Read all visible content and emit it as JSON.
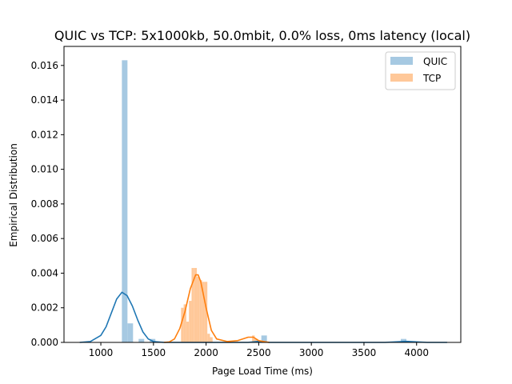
{
  "chart_data": {
    "type": "bar",
    "title": "QUIC vs TCP: 5x1000kb, 50.0mbit, 0.0% loss, 0ms latency (local)",
    "xlabel": "Page Load Time (ms)",
    "ylabel": "Empirical Distribution",
    "xlim": [
      650,
      4420
    ],
    "ylim": [
      0,
      0.0171
    ],
    "x_ticks": [
      1000,
      1500,
      2000,
      2500,
      3000,
      3500,
      4000
    ],
    "x_tick_labels": [
      "1000",
      "1500",
      "2000",
      "2500",
      "3000",
      "3500",
      "4000"
    ],
    "y_ticks": [
      0,
      0.002,
      0.004,
      0.006,
      0.008,
      0.01,
      0.012,
      0.014,
      0.016
    ],
    "y_tick_labels": [
      "0.000",
      "0.002",
      "0.004",
      "0.006",
      "0.008",
      "0.010",
      "0.012",
      "0.014",
      "0.016"
    ],
    "legend_position": "top-right",
    "grid": false,
    "series": [
      {
        "name": "QUIC",
        "kind": "histogram+kde",
        "bar_color": "#a6c9e2",
        "line_color": "#1f77b4",
        "bin_width": 53,
        "bars": [
          {
            "x": 1200,
            "value": 0.0163
          },
          {
            "x": 1253,
            "value": 0.0011
          },
          {
            "x": 1359,
            "value": 0.0002
          },
          {
            "x": 1465,
            "value": 0.0002
          },
          {
            "x": 2525,
            "value": 0.0004
          },
          {
            "x": 3850,
            "value": 0.0002
          }
        ],
        "kde": [
          {
            "x": 800,
            "y": 0.0
          },
          {
            "x": 900,
            "y": 5e-05
          },
          {
            "x": 1000,
            "y": 0.0004
          },
          {
            "x": 1050,
            "y": 0.0009
          },
          {
            "x": 1100,
            "y": 0.0017
          },
          {
            "x": 1150,
            "y": 0.0025
          },
          {
            "x": 1200,
            "y": 0.0029
          },
          {
            "x": 1250,
            "y": 0.0027
          },
          {
            "x": 1300,
            "y": 0.0021
          },
          {
            "x": 1350,
            "y": 0.0013
          },
          {
            "x": 1400,
            "y": 0.0006
          },
          {
            "x": 1450,
            "y": 0.0002
          },
          {
            "x": 1500,
            "y": 5e-05
          },
          {
            "x": 1600,
            "y": 0.0
          },
          {
            "x": 2400,
            "y": 0.0
          },
          {
            "x": 2500,
            "y": 6e-05
          },
          {
            "x": 2600,
            "y": 0.0
          },
          {
            "x": 3700,
            "y": 0.0
          },
          {
            "x": 3900,
            "y": 6e-05
          },
          {
            "x": 4100,
            "y": 0.0
          },
          {
            "x": 4290,
            "y": 0.0
          }
        ]
      },
      {
        "name": "TCP",
        "kind": "histogram+kde",
        "bar_color": "#ffc899",
        "line_color": "#ff7f0e",
        "bin_width": 25,
        "bars": [
          {
            "x": 1762,
            "value": 0.002
          },
          {
            "x": 1787,
            "value": 0.0022
          },
          {
            "x": 1812,
            "value": 0.0012
          },
          {
            "x": 1837,
            "value": 0.0024
          },
          {
            "x": 1862,
            "value": 0.0043
          },
          {
            "x": 1887,
            "value": 0.0043
          },
          {
            "x": 1912,
            "value": 0.0038
          },
          {
            "x": 1937,
            "value": 0.0036
          },
          {
            "x": 1962,
            "value": 0.0035
          },
          {
            "x": 1987,
            "value": 0.0035
          },
          {
            "x": 2012,
            "value": 0.0005
          },
          {
            "x": 2037,
            "value": 0.0003
          },
          {
            "x": 2437,
            "value": 0.0004
          },
          {
            "x": 2462,
            "value": 0.0002
          }
        ],
        "kde": [
          {
            "x": 1600,
            "y": 0.0
          },
          {
            "x": 1650,
            "y": 3e-05
          },
          {
            "x": 1700,
            "y": 0.0002
          },
          {
            "x": 1750,
            "y": 0.0008
          },
          {
            "x": 1800,
            "y": 0.0018
          },
          {
            "x": 1850,
            "y": 0.0031
          },
          {
            "x": 1900,
            "y": 0.0039
          },
          {
            "x": 1925,
            "y": 0.0039
          },
          {
            "x": 1950,
            "y": 0.0035
          },
          {
            "x": 2000,
            "y": 0.002
          },
          {
            "x": 2050,
            "y": 0.0007
          },
          {
            "x": 2100,
            "y": 0.0002
          },
          {
            "x": 2200,
            "y": 5e-05
          },
          {
            "x": 2300,
            "y": 0.0001
          },
          {
            "x": 2400,
            "y": 0.0003
          },
          {
            "x": 2450,
            "y": 0.0003
          },
          {
            "x": 2500,
            "y": 0.0001
          },
          {
            "x": 2600,
            "y": 0.0
          }
        ]
      }
    ]
  }
}
